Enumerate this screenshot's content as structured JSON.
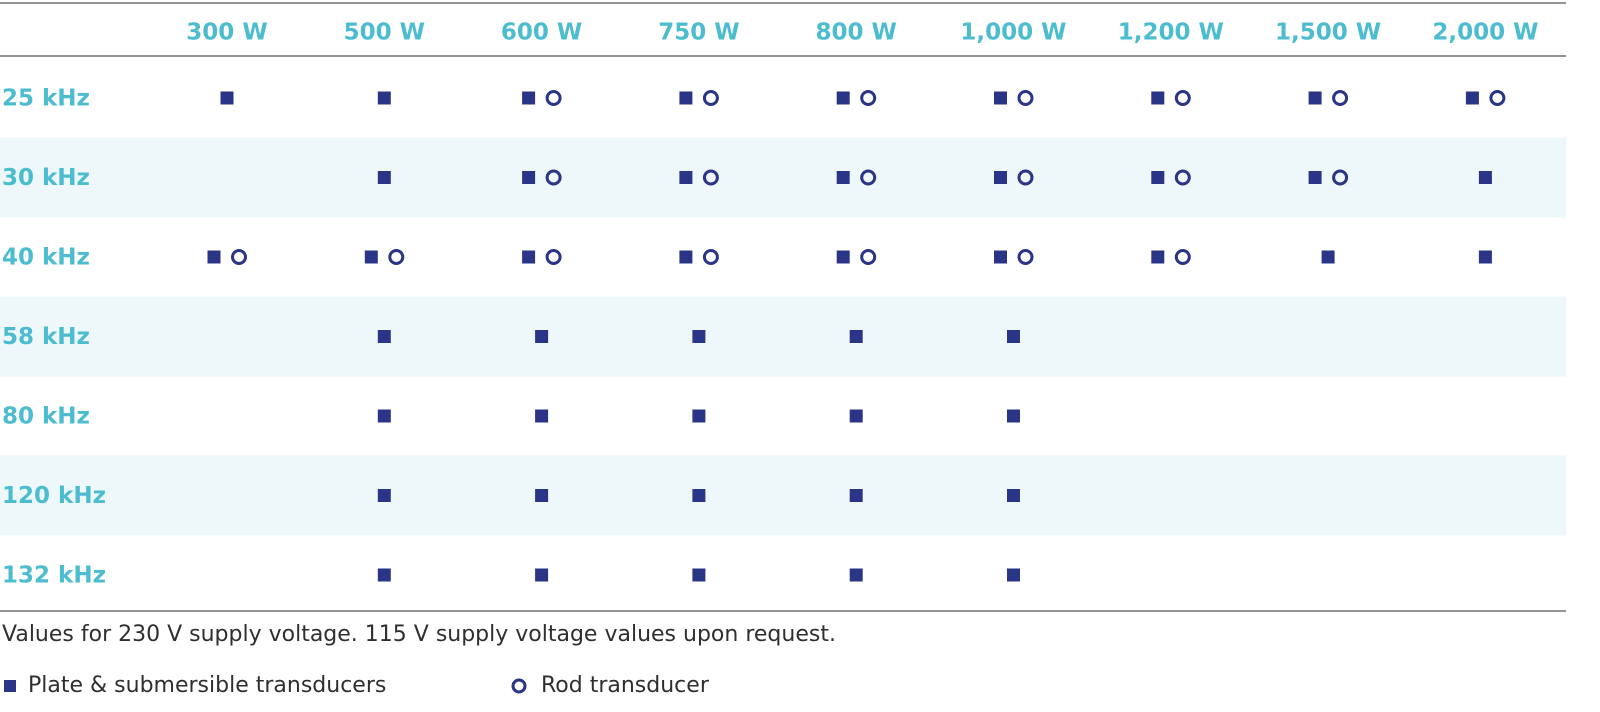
{
  "table": {
    "columns": [
      "300 W",
      "500 W",
      "600 W",
      "750 W",
      "800 W",
      "1,000 W",
      "1,200 W",
      "1,500 W",
      "2,000 W"
    ],
    "rows": [
      {
        "label": "25 kHz",
        "plate": [
          true,
          true,
          true,
          true,
          true,
          true,
          true,
          true,
          true
        ],
        "rod": [
          false,
          false,
          true,
          true,
          true,
          true,
          true,
          true,
          true
        ]
      },
      {
        "label": "30 kHz",
        "plate": [
          false,
          true,
          true,
          true,
          true,
          true,
          true,
          true,
          true
        ],
        "rod": [
          false,
          false,
          true,
          true,
          true,
          true,
          true,
          true,
          false
        ]
      },
      {
        "label": "40 kHz",
        "plate": [
          true,
          true,
          true,
          true,
          true,
          true,
          true,
          true,
          true
        ],
        "rod": [
          true,
          true,
          true,
          true,
          true,
          true,
          true,
          false,
          false
        ]
      },
      {
        "label": "58 kHz",
        "plate": [
          false,
          true,
          true,
          true,
          true,
          true,
          false,
          false,
          false
        ],
        "rod": [
          false,
          false,
          false,
          false,
          false,
          false,
          false,
          false,
          false
        ]
      },
      {
        "label": "80 kHz",
        "plate": [
          false,
          true,
          true,
          true,
          true,
          true,
          false,
          false,
          false
        ],
        "rod": [
          false,
          false,
          false,
          false,
          false,
          false,
          false,
          false,
          false
        ]
      },
      {
        "label": "120 kHz",
        "plate": [
          false,
          true,
          true,
          true,
          true,
          true,
          false,
          false,
          false
        ],
        "rod": [
          false,
          false,
          false,
          false,
          false,
          false,
          false,
          false,
          false
        ]
      },
      {
        "label": "132 kHz",
        "plate": [
          false,
          true,
          true,
          true,
          true,
          true,
          false,
          false,
          false
        ],
        "rod": [
          false,
          false,
          false,
          false,
          false,
          false,
          false,
          false,
          false
        ]
      }
    ]
  },
  "note": "Values for 230 V supply voltage. 115 V supply voltage values upon request.",
  "legend": {
    "plate": "Plate & submersible transducers",
    "rod": "Rod transducer"
  }
}
